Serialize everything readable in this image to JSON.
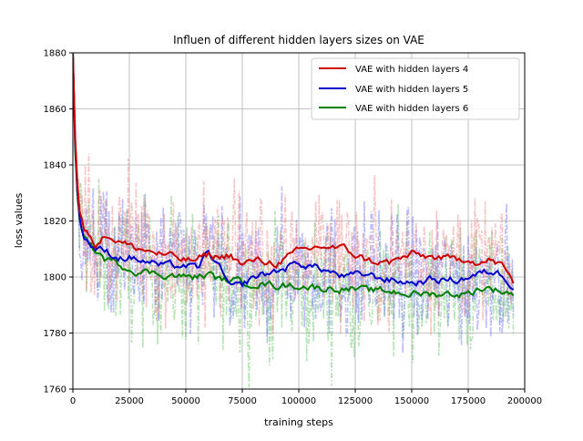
{
  "chart_data": {
    "type": "line",
    "title": "Influen of different hidden layers sizes on VAE",
    "xlabel": "training steps",
    "ylabel": "loss values",
    "xlim": [
      0,
      200000
    ],
    "ylim": [
      1760,
      1880
    ],
    "x_ticks": [
      0,
      25000,
      50000,
      75000,
      100000,
      125000,
      150000,
      175000,
      200000
    ],
    "y_ticks": [
      1760,
      1780,
      1800,
      1820,
      1840,
      1860,
      1880
    ],
    "grid": true,
    "legend_position": "top-right",
    "raw_noise_amplitude": 12,
    "series": [
      {
        "name": "VAE with hidden layers 4",
        "color": "#d62728",
        "line_color": "#cc0000",
        "raw_color": "#f08080",
        "x": [
          0,
          1000,
          2500,
          5000,
          10000,
          15000,
          20000,
          25000,
          30000,
          40000,
          50000,
          55000,
          60000,
          65000,
          70000,
          75000,
          80000,
          90000,
          100000,
          110000,
          120000,
          130000,
          140000,
          150000,
          160000,
          170000,
          175000,
          180000,
          185000,
          190000,
          195000
        ],
        "values": [
          1880,
          1850,
          1825,
          1817,
          1812,
          1815,
          1813,
          1811,
          1810,
          1808,
          1806,
          1806,
          1808,
          1807,
          1808,
          1804,
          1806,
          1805,
          1809,
          1811,
          1810,
          1806,
          1805,
          1808,
          1807,
          1806,
          1807,
          1805,
          1806,
          1804,
          1798
        ]
      },
      {
        "name": "VAE with hidden layers 5",
        "color": "#0000cc",
        "line_color": "#0000cc",
        "raw_color": "#6a6aff",
        "x": [
          0,
          1000,
          2500,
          5000,
          10000,
          15000,
          20000,
          25000,
          30000,
          40000,
          50000,
          55000,
          60000,
          65000,
          70000,
          75000,
          80000,
          90000,
          100000,
          110000,
          120000,
          130000,
          140000,
          150000,
          160000,
          170000,
          175000,
          180000,
          185000,
          190000,
          195000
        ],
        "values": [
          1880,
          1848,
          1823,
          1814,
          1810,
          1809,
          1807,
          1807,
          1806,
          1804,
          1804,
          1803,
          1809,
          1803,
          1796,
          1797,
          1800,
          1802,
          1805,
          1803,
          1800,
          1801,
          1799,
          1798,
          1799,
          1799,
          1800,
          1801,
          1802,
          1801,
          1797
        ]
      },
      {
        "name": "VAE with hidden layers 6",
        "color": "#008000",
        "line_color": "#008000",
        "raw_color": "#60c060",
        "x": [
          0,
          1000,
          2500,
          5000,
          10000,
          15000,
          20000,
          25000,
          30000,
          40000,
          50000,
          55000,
          60000,
          65000,
          70000,
          75000,
          80000,
          90000,
          100000,
          110000,
          120000,
          130000,
          140000,
          150000,
          160000,
          170000,
          175000,
          180000,
          185000,
          190000,
          195000
        ],
        "values": [
          1880,
          1845,
          1822,
          1815,
          1809,
          1806,
          1805,
          1803,
          1802,
          1801,
          1800,
          1800,
          1801,
          1799,
          1799,
          1798,
          1798,
          1797,
          1797,
          1796,
          1796,
          1795,
          1795,
          1794,
          1794,
          1794,
          1794,
          1796,
          1796,
          1795,
          1794
        ]
      }
    ]
  }
}
